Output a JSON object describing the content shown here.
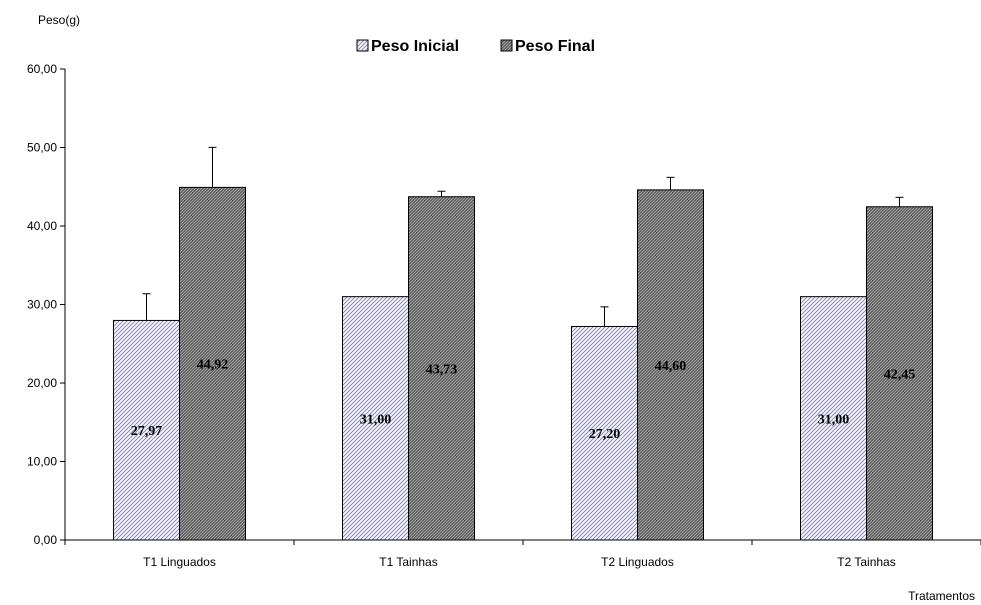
{
  "chart_data": {
    "type": "bar",
    "ylabel": "Peso(g)",
    "xlabel": "Tratamentos",
    "ylim": [
      0,
      60
    ],
    "yticks": [
      "0,00",
      "10,00",
      "20,00",
      "30,00",
      "40,00",
      "50,00",
      "60,00"
    ],
    "categories": [
      "T1 Linguados",
      "T1 Tainhas",
      "T2 Linguados",
      "T2 Tainhas"
    ],
    "grid": false,
    "legend_position": "top-center",
    "series": [
      {
        "name": "Peso Inicial",
        "values": [
          27.97,
          31.0,
          27.2,
          31.0
        ],
        "labels": [
          "27,97",
          "31,00",
          "27,20",
          "31,00"
        ],
        "error": [
          3.4,
          0,
          2.5,
          0
        ],
        "color": "#d8d8f0",
        "pattern": "light-diagonal-hatch"
      },
      {
        "name": "Peso Final",
        "values": [
          44.92,
          43.73,
          44.6,
          42.45
        ],
        "labels": [
          "44,92",
          "43,73",
          "44,60",
          "42,45"
        ],
        "error": [
          5.1,
          0.7,
          1.6,
          1.2
        ],
        "color": "#808080",
        "pattern": "dark-diagonal-hatch"
      }
    ]
  }
}
